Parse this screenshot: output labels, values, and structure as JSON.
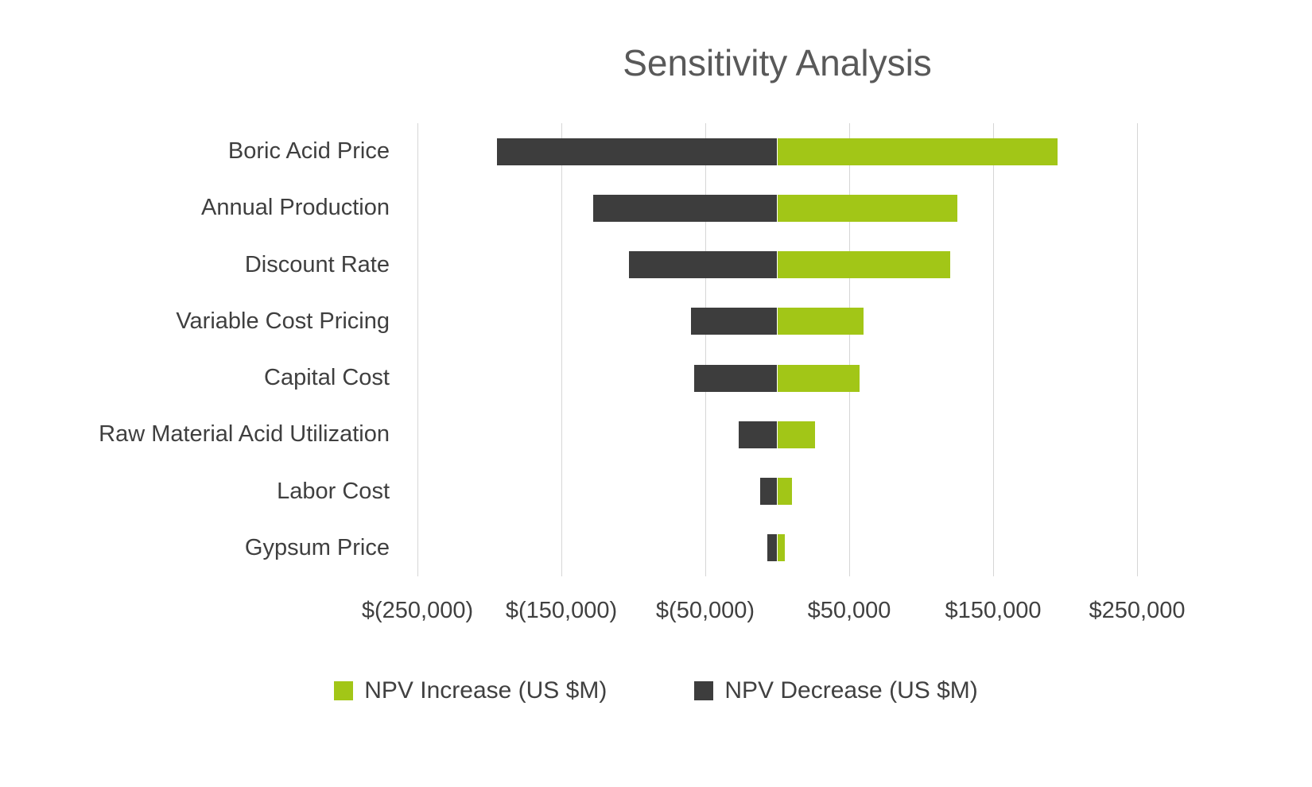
{
  "chart_data": {
    "type": "bar",
    "orientation": "horizontal-tornado",
    "title": "Sensitivity Analysis",
    "categories": [
      "Boric Acid Price",
      "Annual Production",
      "Discount Rate",
      "Variable Cost Pricing",
      "Capital Cost",
      "Raw Material Acid Utilization",
      "Labor Cost",
      "Gypsum Price"
    ],
    "series": [
      {
        "name": "NPV Increase (US $M)",
        "color": "#a2c617",
        "values": [
          195000,
          125000,
          120000,
          60000,
          57000,
          26000,
          10000,
          5000
        ]
      },
      {
        "name": "NPV Decrease (US $M)",
        "color": "#3d3d3d",
        "values": [
          -195000,
          -128000,
          -103000,
          -60000,
          -58000,
          -27000,
          -12000,
          -7000
        ]
      }
    ],
    "x_ticks": [
      "$(250,000)",
      "$(150,000)",
      "$(50,000)",
      "$50,000",
      "$150,000",
      "$250,000"
    ],
    "x_tick_values": [
      -250000,
      -150000,
      -50000,
      50000,
      150000,
      250000
    ],
    "xlim": [
      -250000,
      250000
    ],
    "grid": true,
    "legend_position": "bottom",
    "background": "#ffffff",
    "gridline_color": "#d6d6d6",
    "title_color": "#595959",
    "text_color": "#404040"
  }
}
